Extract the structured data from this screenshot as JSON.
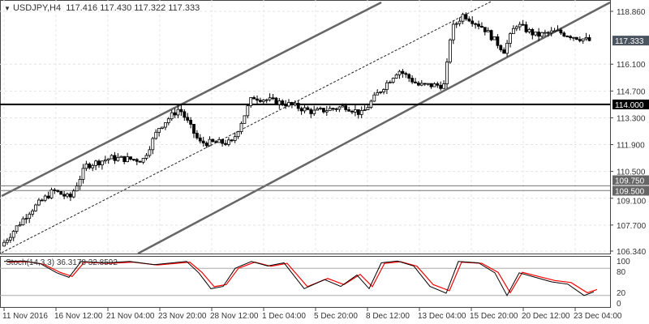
{
  "header": {
    "symbol": "USDJPY,H4",
    "open": "117.416",
    "high": "117.430",
    "low": "117.322",
    "close": "117.333",
    "collapse_icon": "triangle-down-icon"
  },
  "price_axis": {
    "ticks": [
      "118.860",
      "116.100",
      "114.700",
      "113.300",
      "111.900",
      "110.500",
      "109.100",
      "107.700",
      "106.340"
    ],
    "current_price": "117.333",
    "level_114": "114.000",
    "level_109750": "109.750",
    "level_109500": "109.500"
  },
  "indicator": {
    "label": "Stoch(14,3,3) 36.3178 32.8592",
    "levels": [
      "100",
      "80",
      "20",
      "0"
    ]
  },
  "time_axis": [
    "11 Nov 2016",
    "16 Nov 12:00",
    "21 Nov 04:00",
    "23 Nov 20:00",
    "28 Nov 12:00",
    "1 Dec 04:00",
    "5 Dec 20:00",
    "8 Dec 12:00",
    "13 Dec 04:00",
    "15 Dec 20:00",
    "20 Dec 12:00",
    "23 Dec 04:00"
  ],
  "colors": {
    "bull": "#ffffff",
    "bear": "#000000",
    "stoch_main": "#000000",
    "stoch_signal": "#ff0000",
    "channel": "#555555",
    "price_tag": "#4a5560",
    "level_tag": "#000000"
  }
}
